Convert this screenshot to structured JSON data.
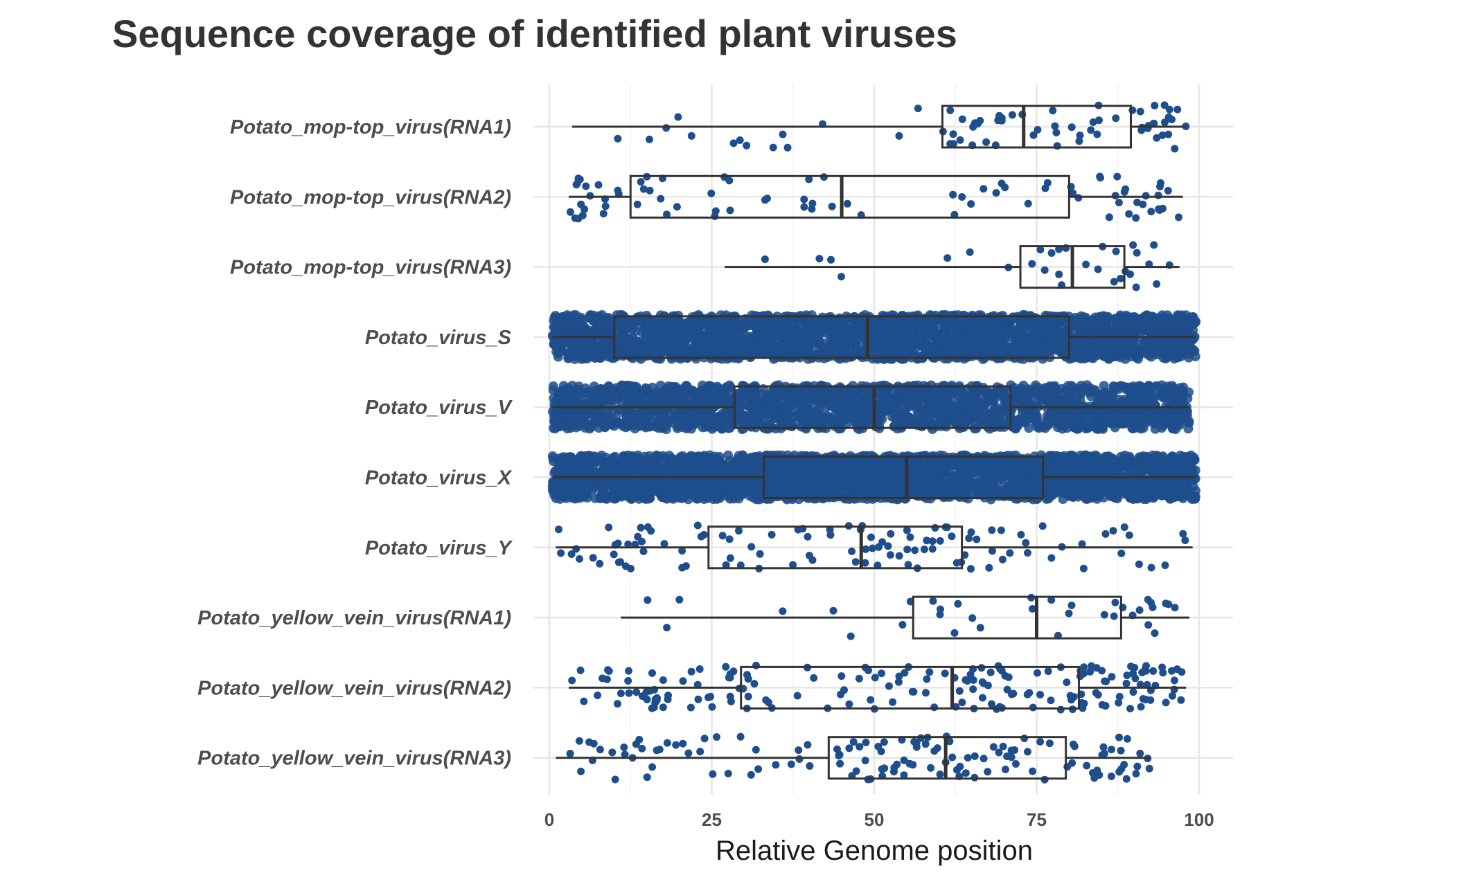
{
  "chart_data": {
    "type": "box",
    "title": "Sequence coverage of identified plant viruses",
    "xlabel": "Relative Genome position",
    "ylabel": "",
    "xlim": [
      0,
      100
    ],
    "xticks": [
      0,
      25,
      50,
      75,
      100
    ],
    "grid": true,
    "point_color": "#1f4e8c",
    "box_color": "#333333",
    "categories": [
      "Potato_mop-top_virus(RNA1)",
      "Potato_mop-top_virus(RNA2)",
      "Potato_mop-top_virus(RNA3)",
      "Potato_virus_S",
      "Potato_virus_V",
      "Potato_virus_X",
      "Potato_virus_Y",
      "Potato_yellow_vein_virus(RNA1)",
      "Potato_yellow_vein_virus(RNA2)",
      "Potato_yellow_vein_virus(RNA3)"
    ],
    "series": [
      {
        "category": "Potato_mop-top_virus(RNA1)",
        "whisker_low": 3.5,
        "q1": 60.5,
        "median": 73,
        "q3": 89.5,
        "whisker_high": 98,
        "n_points": 70
      },
      {
        "category": "Potato_mop-top_virus(RNA2)",
        "whisker_low": 3,
        "q1": 12.5,
        "median": 45,
        "q3": 80,
        "whisker_high": 97.5,
        "n_points": 80
      },
      {
        "category": "Potato_mop-top_virus(RNA3)",
        "whisker_low": 27,
        "q1": 72.5,
        "median": 80.5,
        "q3": 88.5,
        "whisker_high": 97,
        "n_points": 30
      },
      {
        "category": "Potato_virus_S",
        "whisker_low": 0.5,
        "q1": 10,
        "median": 49,
        "q3": 80,
        "whisker_high": 99.5,
        "n_points": 2600
      },
      {
        "category": "Potato_virus_V",
        "whisker_low": 0.5,
        "q1": 28.5,
        "median": 50,
        "q3": 71,
        "whisker_high": 98.5,
        "n_points": 2000
      },
      {
        "category": "Potato_virus_X",
        "whisker_low": 0.5,
        "q1": 33,
        "median": 55,
        "q3": 76,
        "whisker_high": 99.5,
        "n_points": 3000
      },
      {
        "category": "Potato_virus_Y",
        "whisker_low": 1,
        "q1": 24.5,
        "median": 48,
        "q3": 63.5,
        "whisker_high": 99,
        "n_points": 110
      },
      {
        "category": "Potato_yellow_vein_virus(RNA1)",
        "whisker_low": 11,
        "q1": 56,
        "median": 75,
        "q3": 88,
        "whisker_high": 98.5,
        "n_points": 35
      },
      {
        "category": "Potato_yellow_vein_virus(RNA2)",
        "whisker_low": 3,
        "q1": 29.5,
        "median": 62,
        "q3": 81.5,
        "whisker_high": 98,
        "n_points": 180
      },
      {
        "category": "Potato_yellow_vein_virus(RNA3)",
        "whisker_low": 1,
        "q1": 43,
        "median": 61,
        "q3": 79.5,
        "whisker_high": 92.5,
        "n_points": 130
      }
    ]
  }
}
